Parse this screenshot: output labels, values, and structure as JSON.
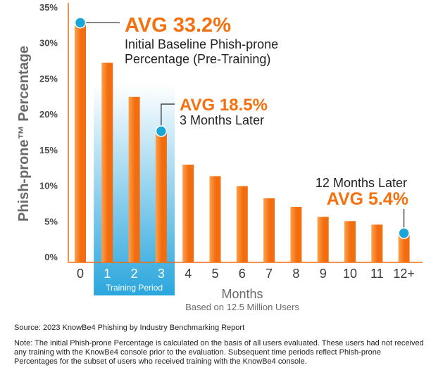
{
  "chart_data": {
    "type": "bar",
    "ylabel": "Phish-prone™ Percentage",
    "xlabel": "Months",
    "xsublabel": "Based on 12.5 Million Users",
    "categories": [
      "0",
      "1",
      "2",
      "3",
      "4",
      "5",
      "6",
      "7",
      "8",
      "9",
      "10",
      "11",
      "12+"
    ],
    "values": [
      32.8,
      27.2,
      22.4,
      17.6,
      12.9,
      11.3,
      9.9,
      8.2,
      7.0,
      5.6,
      5.0,
      4.5,
      3.3
    ],
    "ylim": [
      0,
      35
    ],
    "yticks": [
      0,
      5,
      10,
      15,
      20,
      25,
      30,
      35
    ],
    "ytick_labels": [
      "0%",
      "5%",
      "10%",
      "15%",
      "20%",
      "25%",
      "30%",
      "35%"
    ],
    "highlight": {
      "label": "Training Period",
      "categories": [
        "1",
        "2",
        "3"
      ]
    },
    "callouts": [
      {
        "category": "0",
        "value": 32.8,
        "avg": "AVG 33.2%",
        "lines": [
          "Initial Baseline Phish-prone",
          "Percentage (Pre-Training)"
        ]
      },
      {
        "category": "3",
        "value": 17.6,
        "avg": "AVG 18.5%",
        "lines": [
          "3 Months Later"
        ]
      },
      {
        "category": "12+",
        "value": 3.3,
        "avg": "AVG 5.4%",
        "lines": [
          "12 Months Later"
        ]
      }
    ],
    "colors": {
      "bar_light": "#ffa04a",
      "bar_dark": "#f26d10",
      "accent": "#f5700f",
      "marker": "#1aa7d8",
      "highlight": "#2aa6dd"
    },
    "grid": false
  },
  "source": "Source: 2023 KnowBe4 Phishing by Industry Benchmarking Report",
  "note": "Note: The initial Phish-prone Percentage is calculated on the basis of all users evaluated. These users had not received any training with the KnowBe4 console prior to the evaluation. Subsequent time periods reflect Phish-prone Percentages for the subset of users who received training with the KnowBe4 console."
}
